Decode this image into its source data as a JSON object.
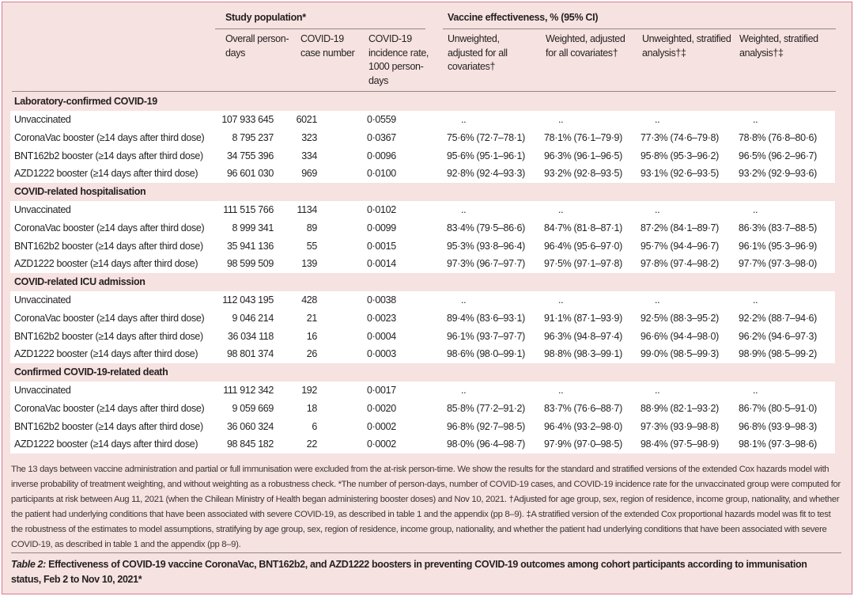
{
  "header": {
    "group_study": "Study population*",
    "group_ve": "Vaccine effectiveness, % (95% CI)",
    "columns": [
      "Overall person-days",
      "COVID-19 case number",
      "COVID-19 incidence rate, 1000 person-days",
      "Unweighted, adjusted for all covariates†",
      "Weighted, adjusted for all covariates†",
      "Unweighted, stratified analysis†‡",
      "Weighted, stratified analysis†‡"
    ]
  },
  "sections": [
    {
      "title": "Laboratory-confirmed COVID-19",
      "rows": [
        [
          "Unvaccinated",
          "107 933 645",
          "6021",
          "0·0559",
          "..",
          "..",
          "..",
          ".."
        ],
        [
          "CoronaVac booster (≥14 days after third dose)",
          "8 795 237",
          "323",
          "0·0367",
          "75·6% (72·7–78·1)",
          "78·1% (76·1–79·9)",
          "77·3% (74·6–79·8)",
          "78·8% (76·8–80·6)"
        ],
        [
          "BNT162b2 booster (≥14 days after third dose)",
          "34 755 396",
          "334",
          "0·0096",
          "95·6% (95·1–96·1)",
          "96·3% (96·1–96·5)",
          "95·8% (95·3–96·2)",
          "96·5% (96·2–96·7)"
        ],
        [
          "AZD1222 booster (≥14 days after third dose)",
          "96 601 030",
          "969",
          "0·0100",
          "92·8% (92·4–93·3)",
          "93·2% (92·8–93·5)",
          "93·1% (92·6–93·5)",
          "93·2% (92·9–93·6)"
        ]
      ]
    },
    {
      "title": "COVID-related hospitalisation",
      "rows": [
        [
          "Unvaccinated",
          "111 515 766",
          "1134",
          "0·0102",
          "..",
          "..",
          "..",
          ".."
        ],
        [
          "CoronaVac booster (≥14 days after third dose)",
          "8 999 341",
          "89",
          "0·0099",
          "83·4% (79·5–86·6)",
          "84·7% (81·8–87·1)",
          "87·2% (84·1–89·7)",
          "86·3% (83·7–88·5)"
        ],
        [
          "BNT162b2 booster (≥14 days after third dose)",
          "35 941 136",
          "55",
          "0·0015",
          "95·3% (93·8–96·4)",
          "96·4% (95·6–97·0)",
          "95·7% (94·4–96·7)",
          "96·1% (95·3–96·9)"
        ],
        [
          "AZD1222 booster (≥14 days after third dose)",
          "98 599 509",
          "139",
          "0·0014",
          "97·3% (96·7–97·7)",
          "97·5% (97·1–97·8)",
          "97·8% (97·4–98·2)",
          "97·7% (97·3–98·0)"
        ]
      ]
    },
    {
      "title": "COVID-related ICU admission",
      "rows": [
        [
          "Unvaccinated",
          "112 043 195",
          "428",
          "0·0038",
          "..",
          "..",
          "..",
          ".."
        ],
        [
          "CoronaVac booster (≥14 days after third dose)",
          "9 046 214",
          "21",
          "0·0023",
          "89·4% (83·6–93·1)",
          "91·1% (87·1–93·9)",
          "92·5% (88·3–95·2)",
          "92·2% (88·7–94·6)"
        ],
        [
          "BNT162b2 booster (≥14 days after third dose)",
          "36 034 118",
          "16",
          "0·0004",
          "96·1% (93·7–97·7)",
          "96·3% (94·8–97·4)",
          "96·6% (94·4–98·0)",
          "96·2% (94·6–97·3)"
        ],
        [
          "AZD1222 booster (≥14 days after third dose)",
          "98 801 374",
          "26",
          "0·0003",
          "98·6% (98·0–99·1)",
          "98·8% (98·3–99·1)",
          "99·0% (98·5–99·3)",
          "98·9% (98·5–99·2)"
        ]
      ]
    },
    {
      "title": "Confirmed COVID-19-related death",
      "rows": [
        [
          "Unvaccinated",
          "111 912 342",
          "192",
          "0·0017",
          "..",
          "..",
          "..",
          ".."
        ],
        [
          "CoronaVac booster (≥14 days after third dose)",
          "9 059 669",
          "18",
          "0·0020",
          "85·8% (77·2–91·2)",
          "83·7% (76·6–88·7)",
          "88·9% (82·1–93·2)",
          "86·7% (80·5–91·0)"
        ],
        [
          "BNT162b2 booster (≥14 days after third dose)",
          "36 060 324",
          "6",
          "0·0002",
          "96·8% (92·7–98·5)",
          "96·4% (93·2–98·0)",
          "97·3% (93·9–98·8)",
          "96·8% (93·9–98·3)"
        ],
        [
          "AZD1222 booster (≥14 days after third dose)",
          "98 845 182",
          "22",
          "0·0002",
          "98·0% (96·4–98·7)",
          "97·9% (97·0–98·5)",
          "98·4% (97·5–98·9)",
          "98·1% (97·3–98·6)"
        ]
      ]
    }
  ],
  "footnote": "The 13 days between vaccine administration and partial or full immunisation were excluded from the at-risk person-time. We show the results for the standard and stratified versions of the extended Cox hazards model with inverse probability of treatment weighting, and without weighting as a robustness check. *The number of person-days, number of COVID-19 cases, and COVID-19 incidence rate for the unvaccinated group were computed for participants at risk between Aug 11, 2021 (when the Chilean Ministry of Health began administering booster doses) and Nov 10, 2021. †Adjusted for age group, sex, region of residence, income group, nationality, and whether the patient had underlying conditions that have been associated with severe COVID-19, as described in table 1 and the appendix (pp 8–9). ‡A stratified version of the extended Cox proportional hazards model was fit to test the robustness of the estimates to model assumptions, stratifying by age group, sex, region of residence, income group, nationality, and whether the patient had underlying conditions that have been associated with severe COVID-19, as described in table 1 and the appendix (pp 8–9).",
  "caption": {
    "label": "Table 2:",
    "text": " Effectiveness of COVID-19 vaccine CoronaVac, BNT162b2, and AZD1222 boosters in preventing COVID-19 outcomes among cohort participants according to immunisation status, Feb 2 to Nov 10, 2021*"
  }
}
